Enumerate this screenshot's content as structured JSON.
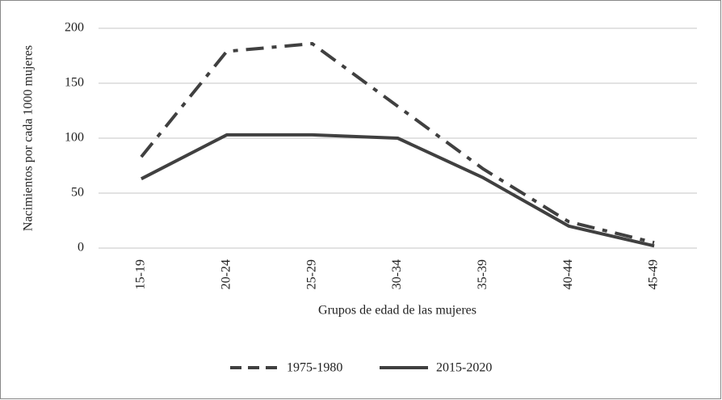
{
  "chart_data": {
    "type": "line",
    "x_label": "Grupos de edad de las mujeres",
    "y_label": "Nacimientos por cada 1000 mujeres",
    "categories": [
      "15-19",
      "20-24",
      "25-29",
      "30-34",
      "35-39",
      "40-44",
      "45-49"
    ],
    "series": [
      {
        "name": "1975-1980",
        "color": "#404040",
        "line_style": "dashed",
        "values": [
          83,
          179,
          186,
          129,
          72,
          24,
          5
        ]
      },
      {
        "name": "2015-2020",
        "color": "#404040",
        "line_style": "solid",
        "values": [
          63,
          103,
          103,
          100,
          64,
          20,
          2
        ]
      }
    ],
    "ylim": [
      0,
      200
    ],
    "yticks": [
      0,
      50,
      100,
      150,
      200
    ],
    "grid": true,
    "legend": "bottom"
  }
}
